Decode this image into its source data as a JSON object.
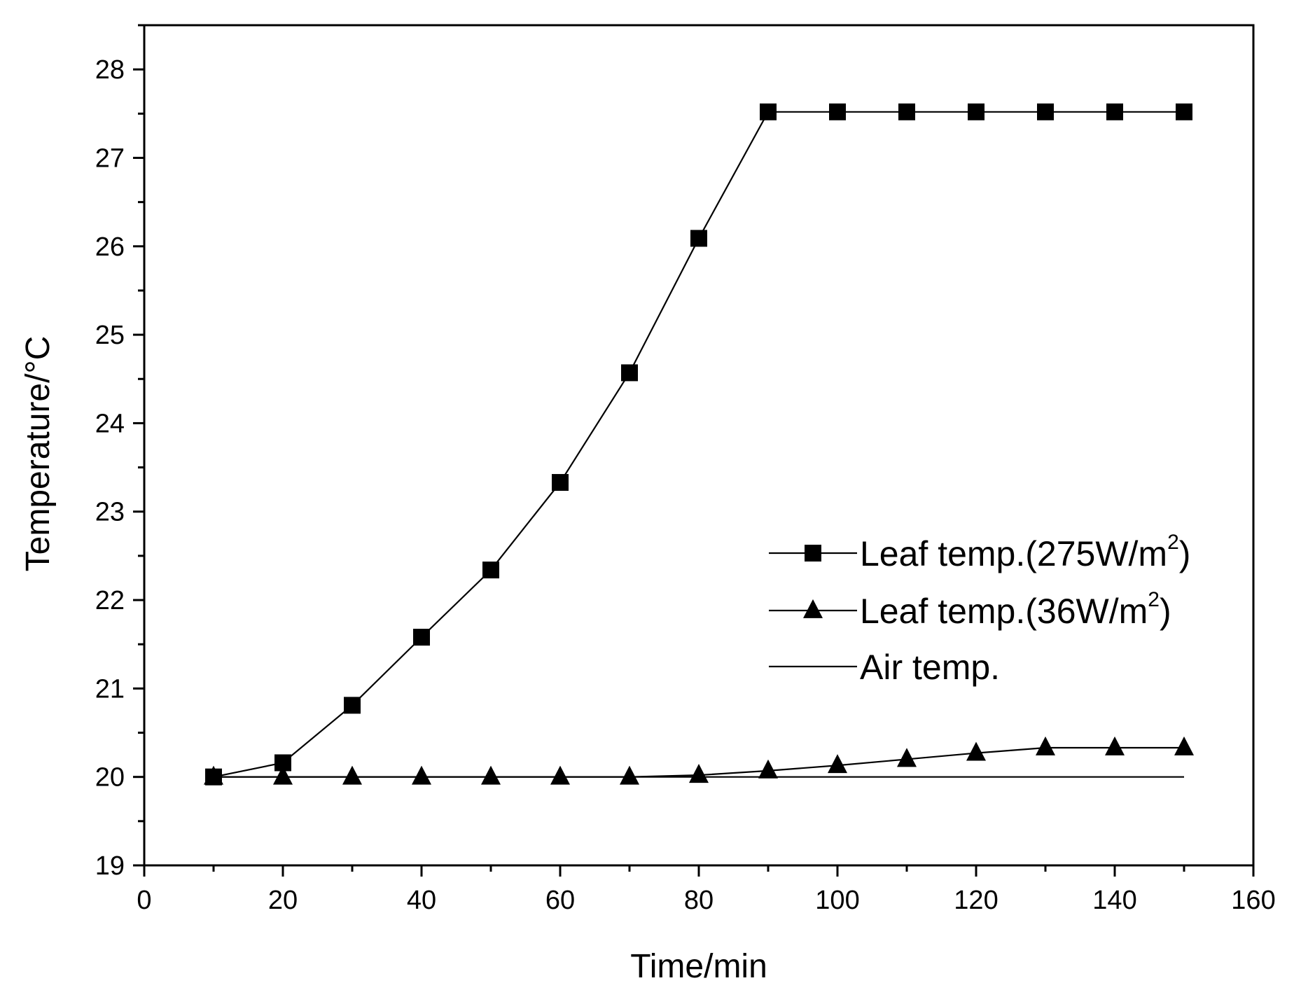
{
  "chart_data": {
    "type": "line",
    "title": "",
    "xlabel": "Time/min",
    "ylabel": "Temperature/°C",
    "xlim": [
      0,
      160
    ],
    "ylim": [
      19,
      28.5
    ],
    "xticks": [
      0,
      20,
      40,
      60,
      80,
      100,
      120,
      140,
      160
    ],
    "yticks": [
      19,
      20,
      21,
      22,
      23,
      24,
      25,
      26,
      27,
      28
    ],
    "x_minor_step": 10,
    "y_minor_step": 0.5,
    "grid": false,
    "legend_position": "center-right",
    "x": [
      10,
      20,
      30,
      40,
      50,
      60,
      70,
      80,
      90,
      100,
      110,
      120,
      130,
      140,
      150
    ],
    "series": [
      {
        "name": "Leaf temp.(275W/m",
        "name_sup": "2",
        "name_suffix": ")",
        "marker": "square",
        "values": [
          20.0,
          20.16,
          20.81,
          21.58,
          22.34,
          23.33,
          24.57,
          26.09,
          27.52,
          27.52,
          27.52,
          27.52,
          27.52,
          27.52,
          27.52
        ]
      },
      {
        "name": "Leaf temp.(36W/m",
        "name_sup": "2",
        "name_suffix": ")",
        "marker": "triangle",
        "values": [
          20.0,
          20.0,
          20.0,
          20.0,
          20.0,
          20.0,
          20.0,
          20.02,
          20.07,
          20.13,
          20.2,
          20.27,
          20.33,
          20.33,
          20.33
        ]
      },
      {
        "name": "Air temp.",
        "name_sup": "",
        "name_suffix": "",
        "marker": "none",
        "values": [
          20.0,
          20.0,
          20.0,
          20.0,
          20.0,
          20.0,
          20.0,
          20.0,
          20.0,
          20.0,
          20.0,
          20.0,
          20.0,
          20.0,
          20.0
        ]
      }
    ]
  }
}
